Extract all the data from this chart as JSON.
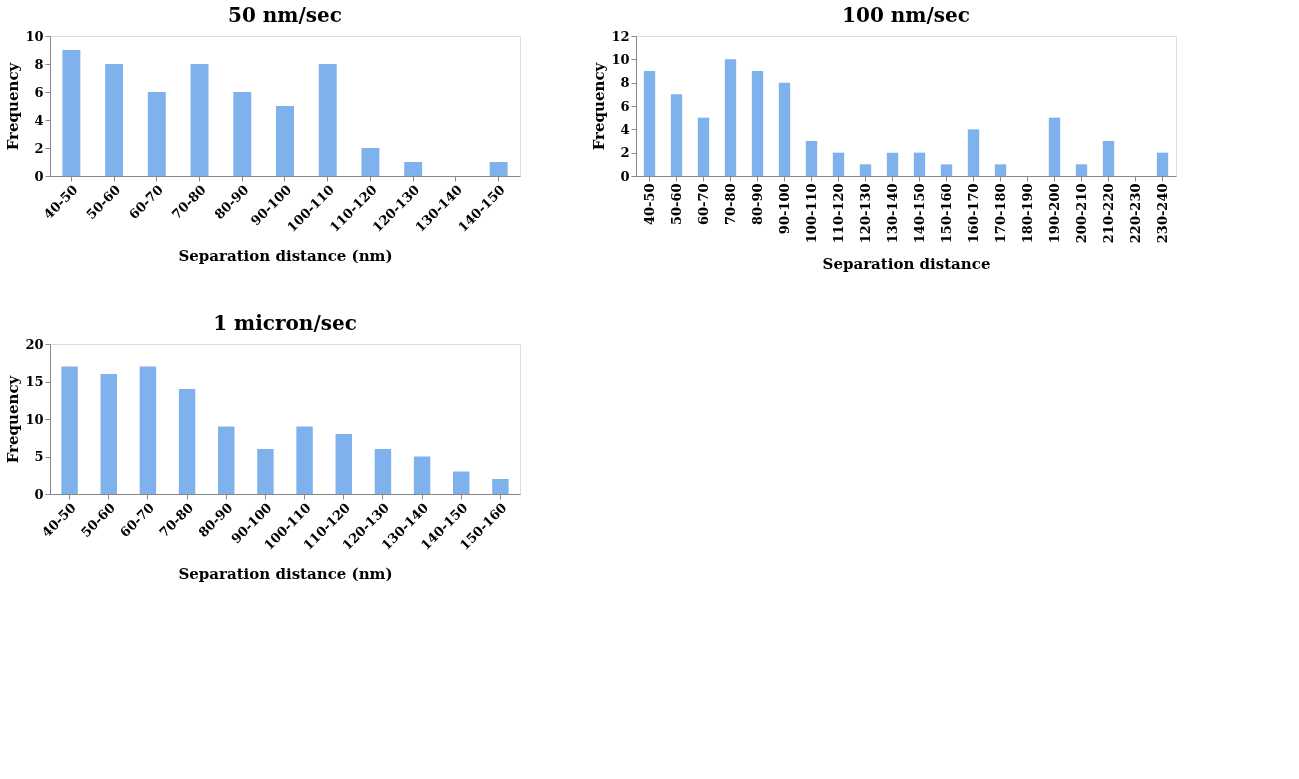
{
  "chart_data": [
    {
      "type": "bar",
      "title": "50 nm/sec",
      "xlabel": "Separation distance (nm)",
      "ylabel": "Frequency",
      "categories": [
        "40-50",
        "50-60",
        "60-70",
        "70-80",
        "80-90",
        "90-100",
        "100-110",
        "110-120",
        "120-130",
        "130-140",
        "140-150"
      ],
      "values": [
        9,
        8,
        6,
        8,
        6,
        5,
        8,
        2,
        1,
        0,
        1
      ],
      "color": "#7fb2ec",
      "ylim": [
        0,
        10
      ],
      "yticks": [
        0,
        2,
        4,
        6,
        8,
        10
      ],
      "grid": false
    },
    {
      "type": "bar",
      "title": "100 nm/sec",
      "xlabel": "Separation distance",
      "ylabel": "Frequency",
      "categories": [
        "40-50",
        "50-60",
        "60-70",
        "70-80",
        "80-90",
        "90-100",
        "100-110",
        "110-120",
        "120-130",
        "130-140",
        "140-150",
        "150-160",
        "160-170",
        "170-180",
        "180-190",
        "190-200",
        "200-210",
        "210-220",
        "220-230",
        "230-240"
      ],
      "values": [
        9,
        7,
        5,
        10,
        9,
        8,
        3,
        2,
        1,
        2,
        2,
        1,
        4,
        1,
        0,
        5,
        1,
        3,
        0,
        2
      ],
      "color": "#7fb2ec",
      "ylim": [
        0,
        12
      ],
      "yticks": [
        0,
        2,
        4,
        6,
        8,
        10,
        12
      ],
      "grid": false
    },
    {
      "type": "bar",
      "title": "1 micron/sec",
      "xlabel": "Separation distance (nm)",
      "ylabel": "Frequency",
      "categories": [
        "40-50",
        "50-60",
        "60-70",
        "70-80",
        "80-90",
        "90-100",
        "100-110",
        "110-120",
        "120-130",
        "130-140",
        "140-150",
        "150-160"
      ],
      "values": [
        17,
        16,
        17,
        14,
        9,
        6,
        9,
        8,
        6,
        5,
        3,
        2
      ],
      "color": "#7fb2ec",
      "ylim": [
        0,
        20
      ],
      "yticks": [
        0,
        5,
        10,
        15,
        20
      ],
      "grid": false
    }
  ]
}
